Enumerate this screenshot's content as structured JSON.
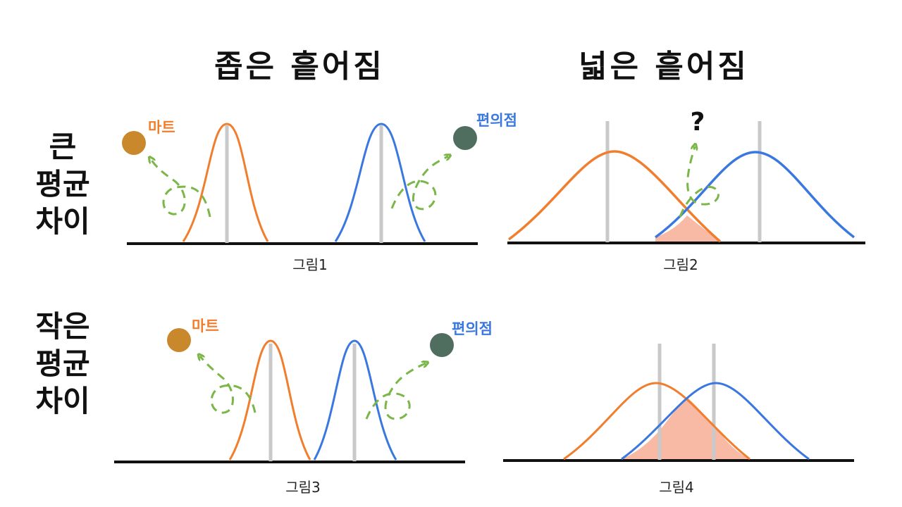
{
  "headers": {
    "col_narrow": "좁은 흩어짐",
    "col_wide": "넓은 흩어짐"
  },
  "rows": {
    "large": [
      "큰",
      "평균",
      "차이"
    ],
    "small": [
      "작은",
      "평균",
      "차이"
    ]
  },
  "panels": [
    {
      "caption": "그림1",
      "left_label": "마트",
      "right_label": "편의점"
    },
    {
      "caption": "그림2",
      "mark": "?"
    },
    {
      "caption": "그림3",
      "left_label": "마트",
      "right_label": "편의점"
    },
    {
      "caption": "그림4"
    }
  ],
  "colors": {
    "mart": "#f07e2d",
    "convenience": "#3a78e0",
    "arrow": "#7ab648",
    "overlap_fill": "#f8b9a5",
    "center_line": "#c9c9c9",
    "baseline": "#111111",
    "mart_ball": "#c9882c",
    "convenience_ball": "#4f6e60"
  },
  "icons": [
    "mart-ball-icon",
    "convenience-ball-icon",
    "green-loop-arrow-icon",
    "question-mark-icon"
  ]
}
